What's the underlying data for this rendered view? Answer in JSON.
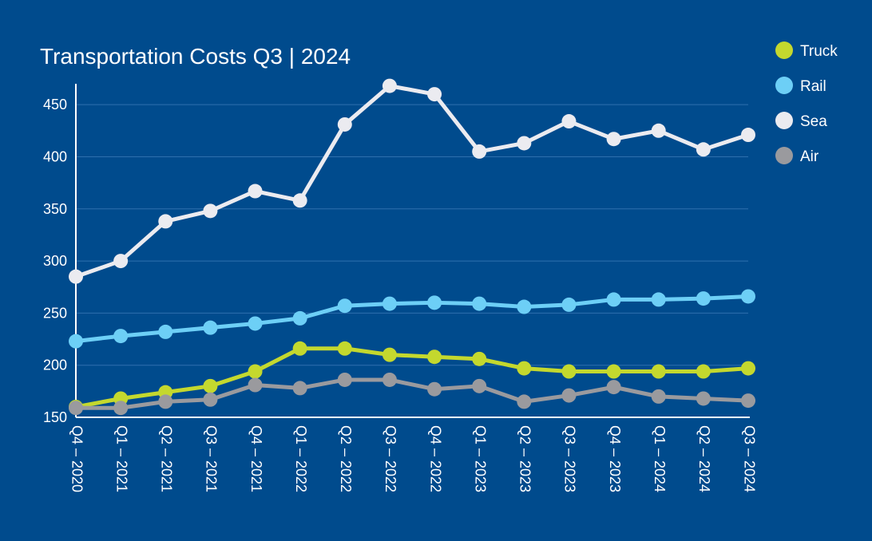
{
  "chart_data": {
    "type": "line",
    "title": "Transportation Costs Q3 | 2024",
    "xlabel": "",
    "ylabel": "",
    "categories": [
      "Q4 – 2020",
      "Q1 – 2021",
      "Q2 – 2021",
      "Q3 – 2021",
      "Q4 – 2021",
      "Q1 – 2022",
      "Q2 – 2022",
      "Q3 – 2022",
      "Q4 – 2022",
      "Q1 – 2023",
      "Q2 – 2023",
      "Q3 – 2023",
      "Q4 – 2023",
      "Q1 – 2024",
      "Q2 – 2024",
      "Q3 – 2024"
    ],
    "ylim": [
      150,
      470
    ],
    "yticks": [
      150,
      200,
      250,
      300,
      350,
      400,
      450
    ],
    "grid": true,
    "legend_position": "top-right",
    "series": [
      {
        "name": "Truck",
        "color": "#c4d82e",
        "values": [
          160,
          168,
          174,
          180,
          194,
          216,
          216,
          210,
          208,
          206,
          197,
          194,
          194,
          194,
          194,
          197
        ]
      },
      {
        "name": "Rail",
        "color": "#6dcff6",
        "values": [
          223,
          228,
          232,
          236,
          240,
          245,
          257,
          259,
          260,
          259,
          256,
          258,
          263,
          263,
          264,
          266
        ]
      },
      {
        "name": "Sea",
        "color": "#ebebf0",
        "values": [
          285,
          300,
          338,
          348,
          367,
          358,
          431,
          468,
          460,
          405,
          413,
          434,
          417,
          425,
          407,
          421
        ]
      },
      {
        "name": "Air",
        "color": "#9a9a9e",
        "values": [
          159,
          159,
          165,
          167,
          181,
          178,
          186,
          186,
          177,
          180,
          165,
          171,
          179,
          170,
          168,
          166
        ]
      }
    ]
  }
}
